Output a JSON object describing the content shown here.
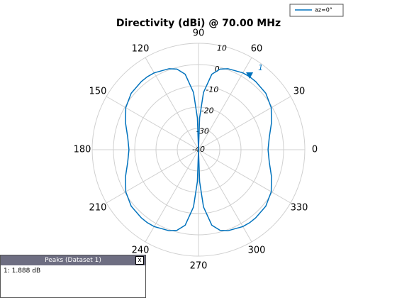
{
  "chart_data": {
    "type": "polar",
    "title": "Directivity (dBi) @ 70.00 MHz",
    "theta": [
      0,
      10,
      20,
      30,
      40,
      50,
      55,
      60,
      70,
      75,
      80,
      85,
      88,
      90,
      92,
      95,
      100,
      105,
      110,
      120,
      125,
      130,
      140,
      150,
      160,
      170,
      180,
      190,
      200,
      210,
      220,
      230,
      235,
      240,
      250,
      255,
      260,
      265,
      268,
      270,
      272,
      275,
      280,
      285,
      290,
      300,
      305,
      310,
      320,
      330,
      340,
      350,
      360
    ],
    "series": [
      {
        "name": "az=0°",
        "color": "#0072bd",
        "values": [
          -7.3,
          -6.2,
          -3.5,
          -0.5,
          1.3,
          1.8,
          1.888,
          1.7,
          0.5,
          -0.8,
          -4,
          -13,
          -25,
          -40,
          -25,
          -13,
          -4,
          -0.8,
          0.5,
          1.7,
          1.888,
          1.8,
          1.3,
          -0.5,
          -3.5,
          -6.2,
          -7.3,
          -6.2,
          -3.5,
          -0.5,
          1.3,
          1.8,
          1.888,
          1.7,
          0.5,
          -0.8,
          -4,
          -13,
          -25,
          -40,
          -25,
          -13,
          -4,
          -0.8,
          0.5,
          1.7,
          1.888,
          1.8,
          1.3,
          -0.5,
          -3.5,
          -6.2,
          -7.3
        ]
      }
    ],
    "rlim": [
      -40,
      10
    ],
    "rticks": [
      -40,
      -30,
      -20,
      -10,
      0,
      10
    ],
    "thetaticks": [
      0,
      30,
      60,
      90,
      120,
      150,
      180,
      210,
      240,
      270,
      300,
      330
    ],
    "peak_marker": {
      "label": "1",
      "theta": 55,
      "value": 1.888
    }
  },
  "peaks_panel": {
    "title": "Peaks (Dataset 1)",
    "close": "x",
    "entries": [
      "1: 1.888 dB"
    ]
  }
}
